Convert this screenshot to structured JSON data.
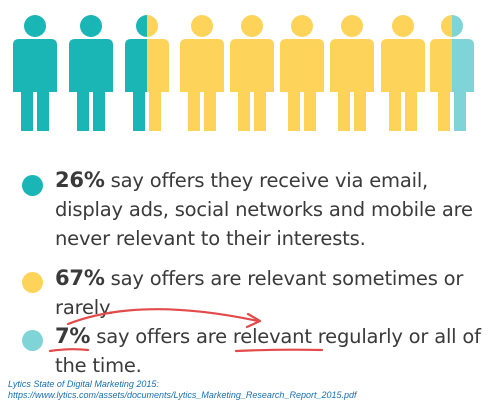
{
  "colors": {
    "teal": "#1ab5b5",
    "yellow": "#fdd35a",
    "light_teal": "#7fd4d7",
    "annotation_red": "#e34a4a",
    "text": "#3a3a3a",
    "link": "#1a6fb0"
  },
  "people": {
    "icon": "person-icon",
    "figures": [
      {
        "style": "teal"
      },
      {
        "style": "teal"
      },
      {
        "style": "teal-yellow-split"
      },
      {
        "style": "yellow"
      },
      {
        "style": "yellow"
      },
      {
        "style": "yellow"
      },
      {
        "style": "yellow"
      },
      {
        "style": "yellow"
      },
      {
        "style": "yellow-lightteal-split"
      }
    ]
  },
  "stats": [
    {
      "color": "teal",
      "percent": "26%",
      "text": " say offers they receive via email, display ads, social networks and mobile are never relevant to their interests."
    },
    {
      "color": "yellow",
      "percent": "67%",
      "text": " say offers are relevant sometimes or rarely."
    },
    {
      "color": "light_teal",
      "percent": "7%",
      "text_before": " say offers are ",
      "emphasis": "relevant",
      "text_after": " regularly or all of the time."
    }
  ],
  "source": {
    "line1": "Lytics State of Digital Marketing 2015:",
    "line2": "https://www.lytics.com/assets/documents/Lytics_Marketing_Research_Report_2015.pdf"
  }
}
